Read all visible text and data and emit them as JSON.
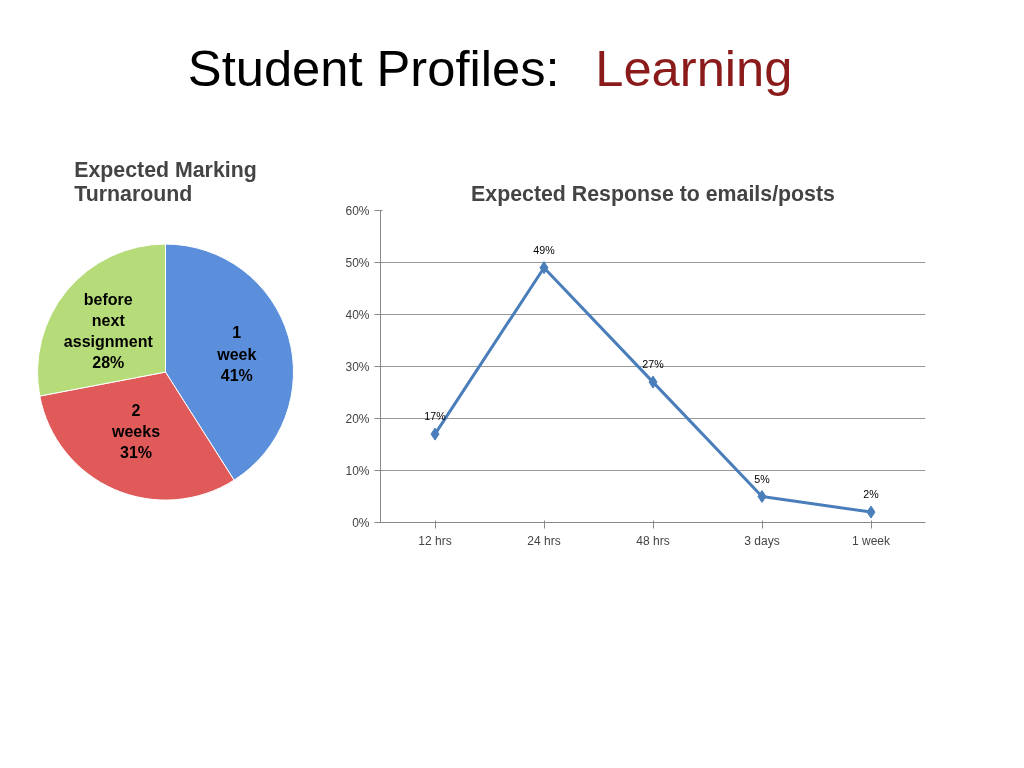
{
  "chart_data": [
    {
      "type": "other",
      "annotations": [
        "Student Profiles:",
        "Learning"
      ],
      "colors": [
        "#000000",
        "#8b1a1a"
      ]
    },
    {
      "type": "pie",
      "title": "Expected Marking Turnaround",
      "categories": [
        "1 week",
        "2 weeks",
        "before next assignment"
      ],
      "values": [
        41,
        31,
        28
      ],
      "value_labels": [
        "41%",
        "31%",
        "28%"
      ],
      "colors": [
        "#5b8fdb",
        "#e05a5a",
        "#b5dc78"
      ]
    },
    {
      "type": "line",
      "title": "Expected Response to emails/posts",
      "categories": [
        "12 hrs",
        "24 hrs",
        "48 hrs",
        "3 days",
        "1 week"
      ],
      "series": [
        {
          "color": "#4a7ebb",
          "values": [
            17,
            49,
            27,
            5,
            2
          ],
          "value_labels": [
            "17%",
            "49%",
            "27%",
            "5%",
            "2%"
          ]
        }
      ],
      "ylim": [
        0,
        60
      ],
      "yticks": [
        {
          "value": 0,
          "label": "0%"
        },
        {
          "value": 10,
          "label": "10%"
        },
        {
          "value": 20,
          "label": "20%"
        },
        {
          "value": 30,
          "label": "30%"
        },
        {
          "value": 40,
          "label": "40%"
        },
        {
          "value": 50,
          "label": "50%"
        },
        {
          "value": 60,
          "label": "60%"
        }
      ],
      "grid": "y",
      "marker": "diamond",
      "line_style": "solid"
    }
  ]
}
